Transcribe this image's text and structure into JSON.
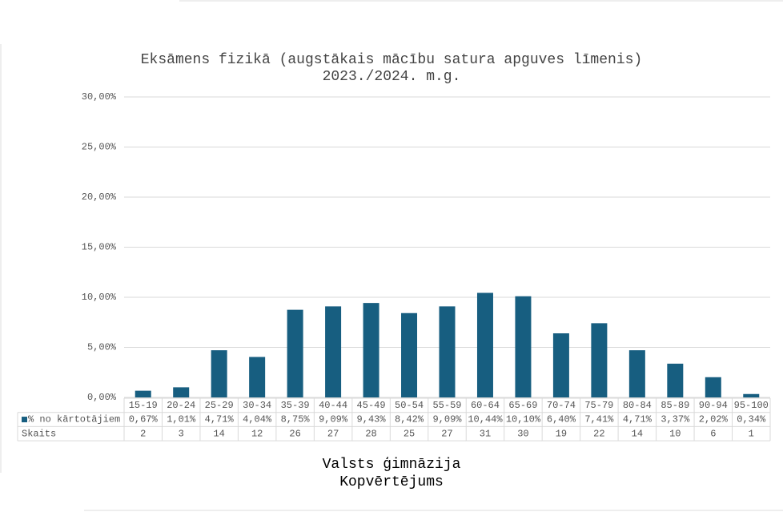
{
  "chart_data": {
    "type": "bar",
    "title": "Eksāmens fizikā (augstākais mācību satura apguves līmenis)",
    "subtitle": "2023./2024. m.g.",
    "categories": [
      "15-19",
      "20-24",
      "25-29",
      "30-34",
      "35-39",
      "40-44",
      "45-49",
      "50-54",
      "55-59",
      "60-64",
      "65-69",
      "70-74",
      "75-79",
      "80-84",
      "85-89",
      "90-94",
      "95-100"
    ],
    "series": [
      {
        "name": "% no kārtotājiem",
        "color": "#175e80",
        "values": [
          0.67,
          1.01,
          4.71,
          4.04,
          8.75,
          9.09,
          9.43,
          8.42,
          9.09,
          10.44,
          10.1,
          6.4,
          7.41,
          4.71,
          3.37,
          2.02,
          0.34
        ],
        "value_labels": [
          "0,67%",
          "1,01%",
          "4,71%",
          "4,04%",
          "8,75%",
          "9,09%",
          "9,43%",
          "8,42%",
          "9,09%",
          "10,44%",
          "10,10%",
          "6,40%",
          "7,41%",
          "4,71%",
          "3,37%",
          "2,02%",
          "0,34%"
        ]
      }
    ],
    "table_rows": [
      {
        "name": "Skaits",
        "values": [
          2,
          3,
          14,
          12,
          26,
          27,
          28,
          25,
          27,
          31,
          30,
          19,
          22,
          14,
          10,
          6,
          1
        ]
      }
    ],
    "ylim": [
      0,
      30
    ],
    "yticks": [
      {
        "value": 0,
        "label": "0,00%"
      },
      {
        "value": 5,
        "label": "5,00%"
      },
      {
        "value": 10,
        "label": "10,00%"
      },
      {
        "value": 15,
        "label": "15,00%"
      },
      {
        "value": 20,
        "label": "20,00%"
      },
      {
        "value": 25,
        "label": "25,00%"
      },
      {
        "value": 30,
        "label": "30,00%"
      }
    ],
    "grid": true,
    "footer": [
      "Valsts ģimnāzija",
      "Kopvērtējums"
    ]
  }
}
